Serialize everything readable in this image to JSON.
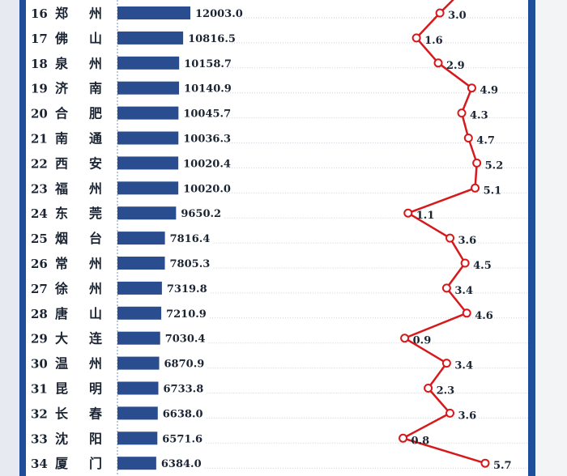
{
  "chart_data": {
    "type": "bar",
    "rows": [
      {
        "rank": "16",
        "city": [
          "郑",
          "州"
        ],
        "value": 12003.0,
        "value_label": "12003.0",
        "growth": 3.0,
        "growth_label": "3.0"
      },
      {
        "rank": "17",
        "city": [
          "佛",
          "山"
        ],
        "value": 10816.5,
        "value_label": "10816.5",
        "growth": 1.6,
        "growth_label": "1.6"
      },
      {
        "rank": "18",
        "city": [
          "泉",
          "州"
        ],
        "value": 10158.7,
        "value_label": "10158.7",
        "growth": 2.9,
        "growth_label": "2.9"
      },
      {
        "rank": "19",
        "city": [
          "济",
          "南"
        ],
        "value": 10140.9,
        "value_label": "10140.9",
        "growth": 4.9,
        "growth_label": "4.9"
      },
      {
        "rank": "20",
        "city": [
          "合",
          "肥"
        ],
        "value": 10045.7,
        "value_label": "10045.7",
        "growth": 4.3,
        "growth_label": "4.3"
      },
      {
        "rank": "21",
        "city": [
          "南",
          "通"
        ],
        "value": 10036.3,
        "value_label": "10036.3",
        "growth": 4.7,
        "growth_label": "4.7"
      },
      {
        "rank": "22",
        "city": [
          "西",
          "安"
        ],
        "value": 10020.4,
        "value_label": "10020.4",
        "growth": 5.2,
        "growth_label": "5.2"
      },
      {
        "rank": "23",
        "city": [
          "福",
          "州"
        ],
        "value": 10020.0,
        "value_label": "10020.0",
        "growth": 5.1,
        "growth_label": "5.1"
      },
      {
        "rank": "24",
        "city": [
          "东",
          "莞"
        ],
        "value": 9650.2,
        "value_label": "9650.2",
        "growth": 1.1,
        "growth_label": "1.1"
      },
      {
        "rank": "25",
        "city": [
          "烟",
          "台"
        ],
        "value": 7816.4,
        "value_label": "7816.4",
        "growth": 3.6,
        "growth_label": "3.6"
      },
      {
        "rank": "26",
        "city": [
          "常",
          "州"
        ],
        "value": 7805.3,
        "value_label": "7805.3",
        "growth": 4.5,
        "growth_label": "4.5"
      },
      {
        "rank": "27",
        "city": [
          "徐",
          "州"
        ],
        "value": 7319.8,
        "value_label": "7319.8",
        "growth": 3.4,
        "growth_label": "3.4"
      },
      {
        "rank": "28",
        "city": [
          "唐",
          "山"
        ],
        "value": 7210.9,
        "value_label": "7210.9",
        "growth": 4.6,
        "growth_label": "4.6"
      },
      {
        "rank": "29",
        "city": [
          "大",
          "连"
        ],
        "value": 7030.4,
        "value_label": "7030.4",
        "growth": 0.9,
        "growth_label": "0.9"
      },
      {
        "rank": "30",
        "city": [
          "温",
          "州"
        ],
        "value": 6870.9,
        "value_label": "6870.9",
        "growth": 3.4,
        "growth_label": "3.4"
      },
      {
        "rank": "31",
        "city": [
          "昆",
          "明"
        ],
        "value": 6733.8,
        "value_label": "6733.8",
        "growth": 2.3,
        "growth_label": "2.3"
      },
      {
        "rank": "32",
        "city": [
          "长",
          "春"
        ],
        "value": 6638.0,
        "value_label": "6638.0",
        "growth": 3.6,
        "growth_label": "3.6"
      },
      {
        "rank": "33",
        "city": [
          "沈",
          "阳"
        ],
        "value": 6571.6,
        "value_label": "6571.6",
        "growth": 0.8,
        "growth_label": "0.8"
      },
      {
        "rank": "34",
        "city": [
          "厦",
          "门"
        ],
        "value": 6384.0,
        "value_label": "6384.0",
        "growth": 5.7,
        "growth_label": "5.7"
      }
    ],
    "bar_color": "#2a4d8f",
    "line_color": "#d7191c",
    "marker_fill": "#ffffff",
    "frame_color": "#1e4e9a",
    "gridlines": true
  }
}
